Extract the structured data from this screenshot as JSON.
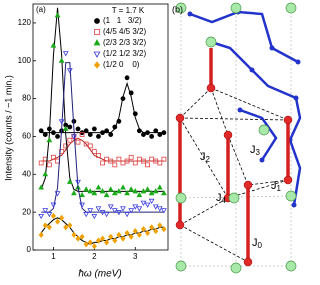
{
  "chart_data": {
    "type": "scatter",
    "panel_label": "(a)",
    "xlabel": "ħω (meV)",
    "ylabel": "Intensity (counts / ~1 min.)",
    "legend_title": "T = 1.7 K",
    "legend": "upper right",
    "xlim": [
      0.5,
      3.8
    ],
    "ylim": [
      0,
      130
    ],
    "xticks": [
      1,
      2,
      3
    ],
    "yticks": [
      0,
      20,
      40,
      60,
      80,
      100,
      120
    ],
    "x": [
      0.7,
      0.8,
      0.9,
      1.0,
      1.1,
      1.2,
      1.3,
      1.4,
      1.5,
      1.6,
      1.7,
      1.8,
      1.9,
      2.0,
      2.1,
      2.2,
      2.3,
      2.4,
      2.5,
      2.6,
      2.7,
      2.8,
      2.9,
      3.0,
      3.1,
      3.2,
      3.3,
      3.4,
      3.5,
      3.6,
      3.7
    ],
    "series": [
      {
        "name": "(1   1   3/2)",
        "color": "#000000",
        "marker": "circle",
        "filled": true,
        "fit_color": "#000000",
        "values": [
          63,
          61,
          64,
          62,
          60,
          63,
          66,
          65,
          68,
          64,
          62,
          63,
          61,
          64,
          60,
          62,
          63,
          61,
          65,
          68,
          80,
          91,
          83,
          72,
          63,
          61,
          62,
          60,
          63,
          61,
          62
        ],
        "fit": [
          62,
          62,
          62,
          62,
          62,
          62,
          62,
          62,
          62,
          62,
          62,
          62,
          62,
          62,
          62,
          62,
          62,
          62,
          64,
          70,
          81,
          88,
          81,
          70,
          64,
          62,
          62,
          62,
          62,
          62,
          62
        ]
      },
      {
        "name": "(4/5 4/5 3/2)",
        "color": "#e04040",
        "marker": "square",
        "filled": false,
        "fit_color": "#b02020",
        "values": [
          46,
          48,
          45,
          49,
          47,
          52,
          55,
          58,
          60,
          57,
          61,
          56,
          55,
          52,
          50,
          46,
          48,
          47,
          45,
          48,
          46,
          47,
          49,
          46,
          48,
          47,
          45,
          48,
          47,
          46,
          48
        ],
        "fit": [
          47,
          47,
          47,
          48,
          49,
          50,
          53,
          56,
          58,
          59,
          58,
          56,
          53,
          50,
          49,
          48,
          47,
          47,
          47,
          47,
          47,
          47,
          47,
          47,
          47,
          47,
          47,
          47,
          47,
          47,
          47
        ]
      },
      {
        "name": "(2/3 2/3 3/2)",
        "color": "#1aaa1a",
        "marker": "triangle",
        "filled": true,
        "fit_color": "#000000",
        "values": [
          33,
          40,
          58,
          108,
          124,
          100,
          64,
          36,
          30,
          33,
          29,
          32,
          31,
          30,
          33,
          31,
          29,
          32,
          30,
          31,
          33,
          30,
          32,
          31,
          29,
          31,
          32,
          30,
          31,
          33,
          30
        ],
        "fit": [
          32,
          38,
          61,
          103,
          128,
          103,
          61,
          38,
          32,
          31,
          31,
          31,
          31,
          31,
          31,
          31,
          31,
          31,
          31,
          31,
          31,
          31,
          31,
          31,
          31,
          31,
          31,
          31,
          31,
          31,
          31
        ]
      },
      {
        "name": "(1/2 1/2 3/2)",
        "color": "#3a3adf",
        "marker": "triangle-down",
        "filled": false,
        "fit_color": "#20207a",
        "values": [
          18,
          21,
          19,
          24,
          30,
          68,
          104,
          95,
          60,
          36,
          24,
          19,
          21,
          18,
          22,
          20,
          19,
          23,
          21,
          20,
          22,
          19,
          21,
          23,
          22,
          25,
          24,
          26,
          23,
          22,
          21
        ],
        "fit": [
          20,
          20,
          20,
          22,
          33,
          64,
          99,
          99,
          64,
          33,
          22,
          20,
          20,
          20,
          20,
          20,
          20,
          20,
          20,
          20,
          20,
          20,
          20,
          20,
          20,
          20,
          20,
          20,
          20,
          20,
          20
        ]
      },
      {
        "name": "(1/2 0    0)",
        "color": "#f0a000",
        "marker": "diamond",
        "filled": true,
        "fit_color": "#000000",
        "values": [
          8,
          13,
          12,
          18,
          15,
          17,
          12,
          13,
          8,
          6,
          7,
          3,
          4,
          2,
          5,
          6,
          4,
          7,
          5,
          8,
          6,
          9,
          7,
          10,
          8,
          11,
          9,
          12,
          10,
          13,
          11
        ],
        "fit": [
          9,
          12,
          14,
          16,
          17,
          16,
          14,
          12,
          9,
          7,
          5,
          4,
          3,
          4,
          4,
          5,
          5,
          6,
          6,
          7,
          7,
          8,
          8,
          9,
          9,
          10,
          10,
          11,
          11,
          12,
          12
        ]
      }
    ]
  },
  "diagram": {
    "panel_label": "(b)",
    "couplings": [
      {
        "symbol": "J",
        "index": "0"
      },
      {
        "symbol": "J",
        "index": "1"
      },
      {
        "symbol": "J",
        "index": "2"
      },
      {
        "symbol": "J",
        "index": "3"
      },
      {
        "symbol": "J",
        "index": "4"
      }
    ]
  }
}
